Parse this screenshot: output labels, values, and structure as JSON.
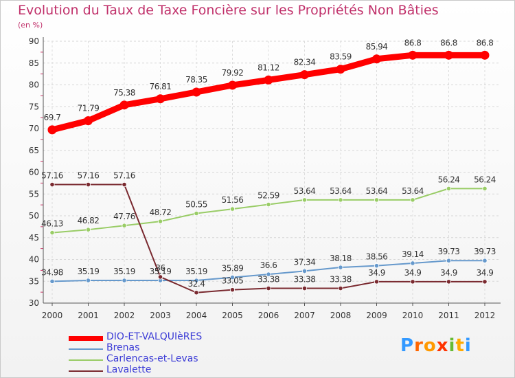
{
  "chart_data": {
    "type": "line",
    "title": "Evolution du Taux de Taxe Foncière sur les Propriétés Non Bâties",
    "ylabel": "(en %)",
    "xlabel": "",
    "ylim": [
      30,
      90
    ],
    "yticks": [
      30,
      35,
      40,
      45,
      50,
      55,
      60,
      65,
      70,
      75,
      80,
      85,
      90
    ],
    "categories": [
      "2000",
      "2001",
      "2002",
      "2003",
      "2004",
      "2005",
      "2006",
      "2007",
      "2008",
      "2009",
      "2010",
      "2011",
      "2012"
    ],
    "grid": true,
    "series": [
      {
        "name": "DIO-ET-VALQUIèRES",
        "color": "#ff0000",
        "values": [
          69.7,
          71.79,
          75.38,
          76.81,
          78.35,
          79.92,
          81.12,
          82.34,
          83.59,
          85.94,
          86.8,
          86.8,
          86.8
        ],
        "labels": [
          "69.7",
          "71.79",
          "75.38",
          "76.81",
          "78.35",
          "79.92",
          "81.12",
          "82.34",
          "83.59",
          "85.94",
          "86.8",
          "86.8",
          "86.8"
        ]
      },
      {
        "name": "Brenas",
        "color": "#6699cc",
        "values": [
          34.98,
          35.19,
          35.19,
          35.19,
          35.19,
          35.89,
          36.6,
          37.34,
          38.18,
          38.56,
          39.14,
          39.73,
          39.73
        ],
        "labels": [
          "34.98",
          "35.19",
          "35.19",
          "35.19",
          "35.19",
          "35.89",
          "36.6",
          "37.34",
          "38.18",
          "38.56",
          "39.14",
          "39.73",
          "39.73"
        ]
      },
      {
        "name": "Carlencas-et-Levas",
        "color": "#99cc66",
        "values": [
          46.13,
          46.82,
          47.76,
          48.72,
          50.55,
          51.56,
          52.59,
          53.64,
          53.64,
          53.64,
          53.64,
          56.24,
          56.24
        ],
        "labels": [
          "46.13",
          "46.82",
          "47.76",
          "48.72",
          "50.55",
          "51.56",
          "52.59",
          "53.64",
          "53.64",
          "53.64",
          "53.64",
          "56.24",
          "56.24"
        ]
      },
      {
        "name": "Lavalette",
        "color": "#7a2a30",
        "values": [
          57.16,
          57.16,
          57.16,
          36.0,
          32.4,
          33.05,
          33.38,
          33.38,
          33.38,
          34.9,
          34.9,
          34.9,
          34.9
        ],
        "labels": [
          "57.16",
          "57.16",
          "57.16",
          "36",
          "32.4",
          "33.05",
          "33.38",
          "33.38",
          "33.38",
          "34.9",
          "34.9",
          "34.9",
          "34.9"
        ]
      }
    ]
  },
  "logo": {
    "letters": [
      "P",
      "r",
      "o",
      "x",
      "i",
      "t",
      "i"
    ],
    "colors": [
      "#3399ff",
      "#ff6600",
      "#ff9900",
      "#ff3300",
      "#66bb33",
      "#ffaa00",
      "#3399ff"
    ]
  }
}
